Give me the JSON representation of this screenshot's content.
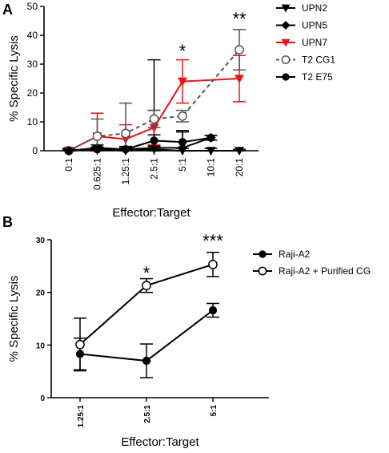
{
  "chart_data": [
    {
      "type": "line",
      "panel_label": "A",
      "categories": [
        "0:1",
        "0.625:1",
        "1.25:1",
        "2.5:1",
        "5:1",
        "10:1",
        "20:1"
      ],
      "xlabel": "Effector:Target",
      "ylabel": "% Specific Lysis",
      "ylim": [
        0,
        50
      ],
      "yticks": [
        0,
        10,
        20,
        30,
        40,
        50
      ],
      "legend_position": "right",
      "series": [
        {
          "name": "UPN2",
          "color": "#000000",
          "marker": "triangle-down",
          "line": "solid",
          "values": [
            0,
            0.5,
            0,
            0.5,
            0,
            0,
            0
          ],
          "errors": [
            0.8,
            0.8,
            0.8,
            1.2,
            0.8,
            0.8,
            0.5
          ]
        },
        {
          "name": "UPN5",
          "color": "#000000",
          "marker": "diamond",
          "line": "solid",
          "values": [
            0,
            1,
            0.5,
            1,
            1,
            4.5,
            null
          ],
          "errors": [
            0.8,
            1,
            1,
            30.5,
            5.5,
            0.8,
            null
          ]
        },
        {
          "name": "UPN7",
          "color": "#e8151b",
          "marker": "triangle-down",
          "line": "solid",
          "values": [
            0,
            5,
            4,
            8,
            24,
            null,
            25
          ],
          "errors": [
            0.5,
            8,
            5,
            6,
            7.5,
            null,
            8
          ]
        },
        {
          "name": "T2 CG1",
          "color": "#555555",
          "marker": "circle-open",
          "line": "dashed",
          "values": [
            0,
            5,
            6,
            11,
            12,
            null,
            35
          ],
          "errors": [
            0.5,
            6,
            10.5,
            3,
            2,
            null,
            7
          ]
        },
        {
          "name": "T2 E75",
          "color": "#000000",
          "marker": "circle",
          "line": "solid",
          "values": [
            0,
            0.5,
            0.5,
            3.5,
            3,
            4.5,
            null
          ],
          "errors": [
            0.5,
            0.8,
            0.8,
            2,
            4,
            0.8,
            null
          ]
        }
      ],
      "annotations": [
        {
          "category": "5:1",
          "text": "*"
        },
        {
          "category": "20:1",
          "text": "**"
        }
      ]
    },
    {
      "type": "line",
      "panel_label": "B",
      "categories": [
        "1.25:1",
        "2.5:1",
        "5:1"
      ],
      "xlabel": "Effector:Target",
      "ylabel": "% Specific Lysis",
      "ylim": [
        0,
        30
      ],
      "yticks": [
        0,
        10,
        20,
        30
      ],
      "legend_position": "right",
      "series": [
        {
          "name": "Raji-A2",
          "color": "#000000",
          "marker": "circle",
          "values": [
            8.3,
            7,
            16.6
          ],
          "errors": [
            3,
            3.2,
            1.3
          ]
        },
        {
          "name": "Raji-A2 + Purified CG",
          "color": "#000000",
          "marker": "circle-open",
          "values": [
            10.1,
            21.3,
            25.3
          ],
          "errors": [
            5,
            1.3,
            2.3
          ]
        }
      ],
      "annotations": [
        {
          "category": "2.5:1",
          "text": "*"
        },
        {
          "category": "5:1",
          "text": "***"
        }
      ]
    }
  ]
}
